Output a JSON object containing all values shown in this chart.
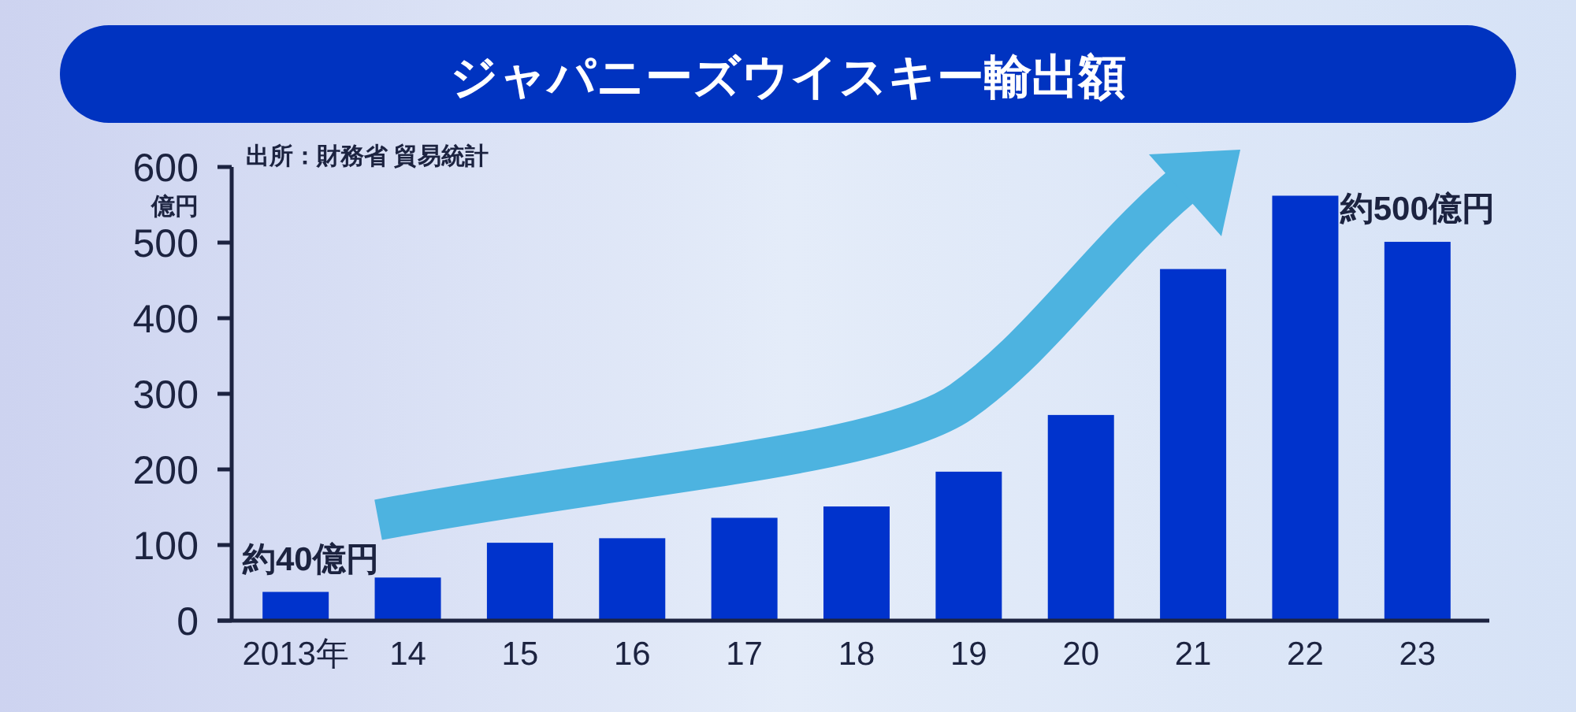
{
  "chart_data": {
    "type": "bar",
    "title": "ジャパニーズウイスキー輸出額",
    "ylabel": "億円",
    "categories": [
      "2013年",
      "14",
      "15",
      "16",
      "17",
      "18",
      "19",
      "20",
      "21",
      "22",
      "23"
    ],
    "values": [
      38,
      57,
      103,
      109,
      136,
      151,
      197,
      272,
      465,
      562,
      501
    ],
    "color": "#0033cc",
    "ylim": [
      0,
      600
    ],
    "yticks": [
      0,
      100,
      200,
      300,
      400,
      500,
      600
    ],
    "grid": false,
    "annotations": [
      "出所：財務省 貿易統計",
      {
        "text": "約40億円",
        "x": "2013年",
        "y": 38
      },
      {
        "text": "約500億円",
        "x": "23",
        "y": 501
      }
    ]
  }
}
